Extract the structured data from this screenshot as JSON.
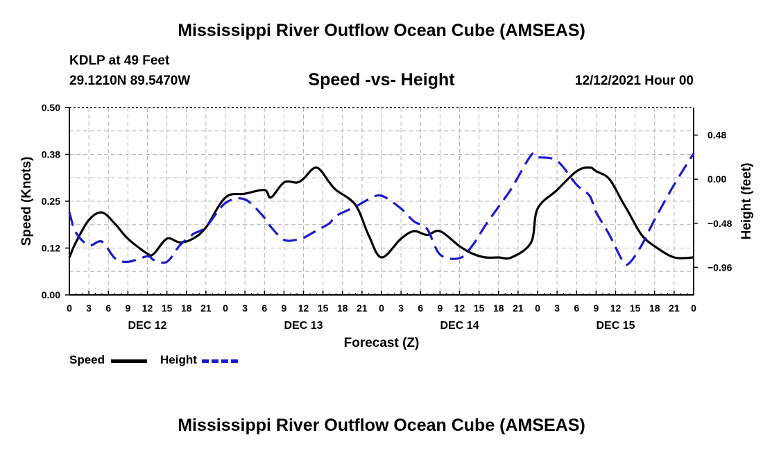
{
  "page_title": "Mississippi River Outflow Ocean Cube (AMSEAS)",
  "footer_title": "Mississippi River Outflow Ocean Cube (AMSEAS)",
  "station": "KDLP at 49 Feet",
  "coordinates": "29.1210N  89.5470W",
  "run_time": "12/12/2021 Hour 00",
  "colors": {
    "speed": "#000000",
    "height": "#1a1acd",
    "grid": "#b4b4b4"
  },
  "chart_data": {
    "type": "line",
    "title": "Speed -vs- Height",
    "xlabel": "Forecast (Z)",
    "ylabel": "Speed (Knots)",
    "y2label": "Height (feet)",
    "x_range_hours": [
      0,
      96
    ],
    "x_tick_labels": [
      "0",
      "3",
      "6",
      "9",
      "12",
      "15",
      "18",
      "21",
      "0",
      "3",
      "6",
      "9",
      "12",
      "15",
      "18",
      "21",
      "0",
      "3",
      "6",
      "9",
      "12",
      "15",
      "18",
      "21",
      "0",
      "3",
      "6",
      "9",
      "12",
      "15",
      "18",
      "21",
      "0"
    ],
    "day_labels": [
      {
        "label": "DEC 12",
        "center_hour": 12
      },
      {
        "label": "DEC 13",
        "center_hour": 36
      },
      {
        "label": "DEC 14",
        "center_hour": 60
      },
      {
        "label": "DEC 15",
        "center_hour": 84
      }
    ],
    "ylim": [
      0,
      0.5
    ],
    "y_ticks": [
      0.0,
      0.125,
      0.25,
      0.375,
      0.5
    ],
    "y_tick_labels": [
      "0.00",
      "0.12",
      "0.25",
      "0.38",
      "0.50"
    ],
    "y2lim": [
      -1.26,
      0.78
    ],
    "y2_ticks": [
      -0.96,
      -0.48,
      0.0,
      0.48
    ],
    "y2_tick_labels": [
      "−0.96",
      "−0.48",
      "0.00",
      "0.48"
    ],
    "grid": true,
    "legend": "bottom-left",
    "series": [
      {
        "name": "Speed",
        "axis": "left",
        "style": "solid",
        "hours": [
          0,
          1,
          3,
          5,
          7,
          9,
          12,
          13,
          15,
          17,
          19,
          21,
          24,
          27,
          30,
          31,
          33,
          35,
          36,
          38,
          40,
          41,
          44,
          46,
          48,
          51,
          53,
          55,
          57,
          60,
          62,
          64,
          66,
          68,
          71,
          72,
          75,
          78,
          80,
          81,
          83,
          85,
          86,
          88,
          90,
          93,
          96
        ],
        "values": [
          0.1,
          0.14,
          0.2,
          0.22,
          0.19,
          0.15,
          0.11,
          0.11,
          0.15,
          0.14,
          0.15,
          0.18,
          0.26,
          0.27,
          0.28,
          0.26,
          0.3,
          0.3,
          0.31,
          0.34,
          0.3,
          0.28,
          0.24,
          0.16,
          0.1,
          0.15,
          0.17,
          0.16,
          0.17,
          0.13,
          0.11,
          0.1,
          0.1,
          0.1,
          0.14,
          0.23,
          0.28,
          0.33,
          0.34,
          0.33,
          0.31,
          0.25,
          0.22,
          0.16,
          0.13,
          0.1,
          0.1
        ]
      },
      {
        "name": "Height",
        "axis": "right",
        "style": "dashed",
        "hours": [
          0,
          1,
          3,
          5,
          7,
          9,
          12,
          13,
          15,
          17,
          19,
          21,
          24,
          27,
          30,
          31,
          33,
          35,
          36,
          38,
          40,
          41,
          44,
          46,
          48,
          51,
          53,
          55,
          57,
          60,
          62,
          64,
          66,
          68,
          71,
          72,
          75,
          78,
          80,
          81,
          83,
          85,
          86,
          88,
          90,
          93,
          96
        ],
        "values": [
          -0.36,
          -0.58,
          -0.72,
          -0.68,
          -0.86,
          -0.9,
          -0.84,
          -0.88,
          -0.9,
          -0.72,
          -0.6,
          -0.52,
          -0.26,
          -0.22,
          -0.42,
          -0.52,
          -0.66,
          -0.66,
          -0.64,
          -0.56,
          -0.48,
          -0.4,
          -0.3,
          -0.22,
          -0.18,
          -0.32,
          -0.46,
          -0.54,
          -0.82,
          -0.86,
          -0.72,
          -0.5,
          -0.3,
          -0.1,
          0.26,
          0.24,
          0.2,
          -0.06,
          -0.18,
          -0.36,
          -0.6,
          -0.88,
          -0.92,
          -0.72,
          -0.44,
          -0.06,
          0.28
        ]
      }
    ]
  }
}
